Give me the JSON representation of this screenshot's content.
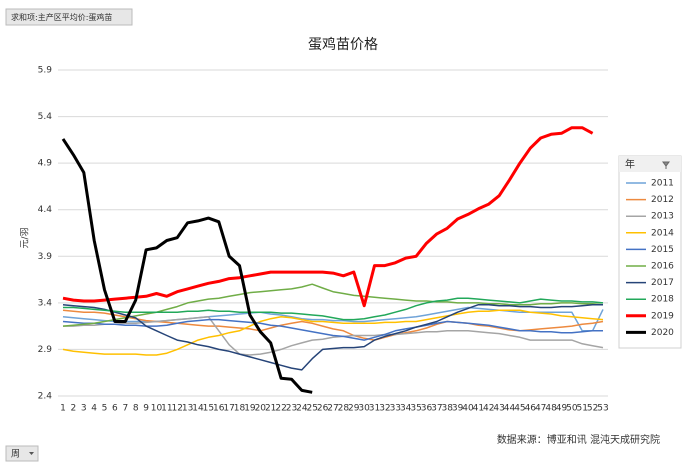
{
  "chart_data": {
    "type": "line",
    "title": "蛋鸡苗价格",
    "value_field": "求和项:主产区平均价:蛋鸡苗",
    "ylabel": "元/羽",
    "legend_title": "年",
    "x_field": "周",
    "source": "数据来源：博亚和讯 混沌天成研究院",
    "categories": [
      1,
      2,
      3,
      4,
      5,
      6,
      7,
      8,
      9,
      10,
      11,
      12,
      13,
      14,
      15,
      16,
      17,
      18,
      19,
      20,
      21,
      22,
      23,
      24,
      25,
      26,
      27,
      28,
      29,
      30,
      31,
      32,
      33,
      34,
      35,
      36,
      37,
      38,
      39,
      40,
      41,
      42,
      43,
      44,
      45,
      46,
      47,
      48,
      49,
      50,
      51,
      52,
      53
    ],
    "ylim": [
      2.4,
      5.9
    ],
    "yticks": [
      2.4,
      2.9,
      3.4,
      3.9,
      4.4,
      4.9,
      5.4,
      5.9
    ],
    "grid": true,
    "legend": "right",
    "series": [
      {
        "name": "2011",
        "color": "#6fa3d8",
        "width": 1.5,
        "values": [
          3.25,
          3.24,
          3.23,
          3.22,
          3.21,
          3.2,
          3.2,
          3.2,
          3.2,
          3.2,
          3.21,
          3.22,
          3.23,
          3.24,
          3.25,
          3.26,
          3.27,
          3.28,
          3.29,
          3.3,
          3.28,
          3.27,
          3.25,
          3.23,
          3.22,
          3.22,
          3.21,
          3.21,
          3.2,
          3.2,
          3.21,
          3.22,
          3.23,
          3.24,
          3.25,
          3.27,
          3.29,
          3.31,
          3.33,
          3.35,
          3.34,
          3.33,
          3.32,
          3.31,
          3.3,
          3.3,
          3.3,
          3.3,
          3.3,
          3.3,
          3.1,
          3.1,
          3.33
        ]
      },
      {
        "name": "2012",
        "color": "#ed8a3f",
        "width": 1.5,
        "values": [
          3.32,
          3.31,
          3.3,
          3.3,
          3.29,
          3.27,
          3.25,
          3.23,
          3.21,
          3.2,
          3.19,
          3.18,
          3.17,
          3.16,
          3.15,
          3.15,
          3.14,
          3.13,
          3.12,
          3.1,
          3.13,
          3.16,
          3.18,
          3.2,
          3.18,
          3.15,
          3.12,
          3.1,
          3.05,
          3.02,
          3.0,
          3.03,
          3.06,
          3.08,
          3.1,
          3.13,
          3.17,
          3.2,
          3.19,
          3.18,
          3.16,
          3.15,
          3.13,
          3.11,
          3.1,
          3.11,
          3.12,
          3.13,
          3.14,
          3.15,
          3.17,
          3.18,
          3.2
        ]
      },
      {
        "name": "2013",
        "color": "#a5a5a5",
        "width": 1.5,
        "values": [
          3.15,
          3.15,
          3.16,
          3.16,
          3.17,
          3.17,
          3.18,
          3.18,
          3.19,
          3.2,
          3.21,
          3.22,
          3.23,
          3.24,
          3.25,
          3.1,
          2.95,
          2.85,
          2.84,
          2.85,
          2.87,
          2.9,
          2.94,
          2.97,
          3.0,
          3.01,
          3.03,
          3.04,
          3.05,
          3.05,
          3.05,
          3.06,
          3.06,
          3.07,
          3.08,
          3.09,
          3.09,
          3.1,
          3.1,
          3.1,
          3.09,
          3.08,
          3.07,
          3.05,
          3.03,
          3.0,
          3.0,
          3.0,
          3.0,
          3.0,
          2.96,
          2.94,
          2.92
        ]
      },
      {
        "name": "2014",
        "color": "#ffc000",
        "width": 1.5,
        "values": [
          2.9,
          2.88,
          2.87,
          2.86,
          2.85,
          2.85,
          2.85,
          2.85,
          2.84,
          2.84,
          2.86,
          2.9,
          2.95,
          3.0,
          3.03,
          3.05,
          3.08,
          3.1,
          3.15,
          3.2,
          3.23,
          3.25,
          3.24,
          3.22,
          3.2,
          3.2,
          3.19,
          3.18,
          3.18,
          3.18,
          3.18,
          3.19,
          3.19,
          3.2,
          3.2,
          3.22,
          3.24,
          3.26,
          3.28,
          3.3,
          3.31,
          3.31,
          3.32,
          3.32,
          3.32,
          3.3,
          3.29,
          3.28,
          3.26,
          3.25,
          3.24,
          3.23,
          3.22
        ]
      },
      {
        "name": "2015",
        "color": "#4472c4",
        "width": 1.5,
        "values": [
          3.2,
          3.19,
          3.18,
          3.18,
          3.17,
          3.17,
          3.16,
          3.16,
          3.15,
          3.15,
          3.16,
          3.18,
          3.2,
          3.21,
          3.22,
          3.22,
          3.21,
          3.2,
          3.19,
          3.18,
          3.16,
          3.15,
          3.13,
          3.11,
          3.09,
          3.07,
          3.05,
          3.04,
          3.02,
          3.0,
          3.03,
          3.06,
          3.1,
          3.12,
          3.14,
          3.16,
          3.18,
          3.2,
          3.19,
          3.18,
          3.17,
          3.16,
          3.14,
          3.12,
          3.1,
          3.1,
          3.09,
          3.09,
          3.08,
          3.08,
          3.09,
          3.1,
          3.1
        ]
      },
      {
        "name": "2016",
        "color": "#70ad47",
        "width": 1.5,
        "values": [
          3.15,
          3.16,
          3.17,
          3.18,
          3.2,
          3.22,
          3.24,
          3.26,
          3.28,
          3.3,
          3.33,
          3.36,
          3.4,
          3.42,
          3.44,
          3.45,
          3.47,
          3.49,
          3.51,
          3.52,
          3.53,
          3.54,
          3.55,
          3.57,
          3.6,
          3.56,
          3.52,
          3.5,
          3.48,
          3.47,
          3.46,
          3.45,
          3.44,
          3.43,
          3.42,
          3.42,
          3.41,
          3.41,
          3.4,
          3.4,
          3.4,
          3.39,
          3.39,
          3.38,
          3.38,
          3.38,
          3.39,
          3.39,
          3.4,
          3.4,
          3.39,
          3.39,
          3.38
        ]
      },
      {
        "name": "2017",
        "color": "#264478",
        "width": 1.5,
        "values": [
          3.38,
          3.37,
          3.36,
          3.35,
          3.33,
          3.3,
          3.27,
          3.24,
          3.15,
          3.1,
          3.05,
          3.0,
          2.98,
          2.95,
          2.93,
          2.9,
          2.88,
          2.85,
          2.82,
          2.79,
          2.76,
          2.73,
          2.7,
          2.68,
          2.8,
          2.9,
          2.91,
          2.92,
          2.92,
          2.93,
          3.0,
          3.04,
          3.07,
          3.1,
          3.14,
          3.17,
          3.2,
          3.25,
          3.3,
          3.34,
          3.38,
          3.38,
          3.37,
          3.37,
          3.36,
          3.36,
          3.35,
          3.35,
          3.36,
          3.36,
          3.37,
          3.38,
          3.38
        ]
      },
      {
        "name": "2018",
        "color": "#22a85a",
        "width": 1.5,
        "values": [
          3.35,
          3.35,
          3.34,
          3.33,
          3.32,
          3.31,
          3.3,
          3.3,
          3.3,
          3.3,
          3.3,
          3.3,
          3.31,
          3.31,
          3.32,
          3.31,
          3.31,
          3.3,
          3.3,
          3.3,
          3.3,
          3.29,
          3.29,
          3.28,
          3.27,
          3.26,
          3.24,
          3.22,
          3.22,
          3.23,
          3.25,
          3.27,
          3.3,
          3.33,
          3.37,
          3.4,
          3.42,
          3.43,
          3.45,
          3.45,
          3.44,
          3.43,
          3.42,
          3.41,
          3.4,
          3.42,
          3.44,
          3.43,
          3.42,
          3.42,
          3.41,
          3.41,
          3.4
        ]
      },
      {
        "name": "2019",
        "color": "#ff0000",
        "width": 3,
        "values": [
          3.45,
          3.43,
          3.42,
          3.42,
          3.43,
          3.44,
          3.45,
          3.46,
          3.47,
          3.5,
          3.47,
          3.52,
          3.55,
          3.58,
          3.61,
          3.63,
          3.66,
          3.67,
          3.69,
          3.71,
          3.73,
          3.73,
          3.73,
          3.73,
          3.73,
          3.73,
          3.72,
          3.69,
          3.73,
          3.37,
          3.8,
          3.8,
          3.83,
          3.88,
          3.9,
          4.04,
          4.14,
          4.2,
          4.3,
          4.35,
          4.41,
          4.46,
          4.55,
          4.72,
          4.9,
          5.06,
          5.17,
          5.21,
          5.22,
          5.28,
          5.28,
          5.22,
          null
        ]
      },
      {
        "name": "2020",
        "color": "#000000",
        "width": 3,
        "values": [
          5.16,
          4.99,
          4.8,
          4.07,
          3.54,
          3.2,
          3.2,
          3.43,
          3.97,
          3.99,
          4.07,
          4.1,
          4.26,
          4.28,
          4.31,
          4.27,
          3.9,
          3.8,
          3.27,
          3.09,
          2.97,
          2.59,
          2.58,
          2.46,
          2.44,
          null,
          null,
          null,
          null,
          null,
          null,
          null,
          null,
          null,
          null,
          null,
          null,
          null,
          null,
          null,
          null,
          null,
          null,
          null,
          null,
          null,
          null,
          null,
          null,
          null,
          null,
          null,
          null
        ]
      }
    ]
  }
}
